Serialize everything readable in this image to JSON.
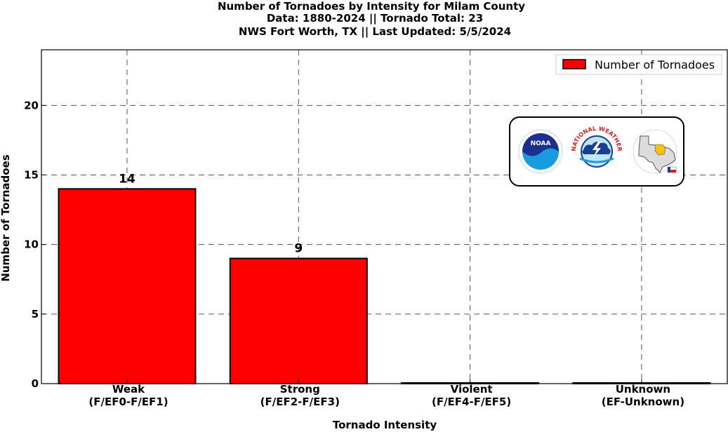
{
  "chart_data": {
    "type": "bar",
    "title_lines": [
      "Number of Tornadoes by Intensity for Milam County",
      "Data: 1880-2024 || Tornado Total: 23",
      "NWS Fort Worth, TX || Last Updated: 5/5/2024"
    ],
    "categories": [
      [
        "Weak",
        "(F/EF0-F/EF1)"
      ],
      [
        "Strong",
        "(F/EF2-F/EF3)"
      ],
      [
        "Violent",
        "(F/EF4-F/EF5)"
      ],
      [
        "Unknown",
        "(EF-Unknown)"
      ]
    ],
    "series": [
      {
        "name": "Number of Tornadoes",
        "values": [
          14,
          9,
          0,
          0
        ],
        "color": "#ff0000"
      }
    ],
    "bar_labels": [
      "14",
      "9",
      "",
      ""
    ],
    "xlabel": "Tornado Intensity",
    "ylabel": "Number of Tornadoes",
    "ylim": [
      0,
      24
    ],
    "yticks": [
      0,
      5,
      10,
      15,
      20
    ],
    "grid": true,
    "legend_position": "top-right",
    "logos": [
      "noaa-logo",
      "national-weather-service-logo",
      "nws-fort-worth-texas-logo"
    ]
  },
  "logo_text": {
    "nws_ring": "NATIONAL WEATHER SERVICE",
    "noaa": "NOAA"
  }
}
